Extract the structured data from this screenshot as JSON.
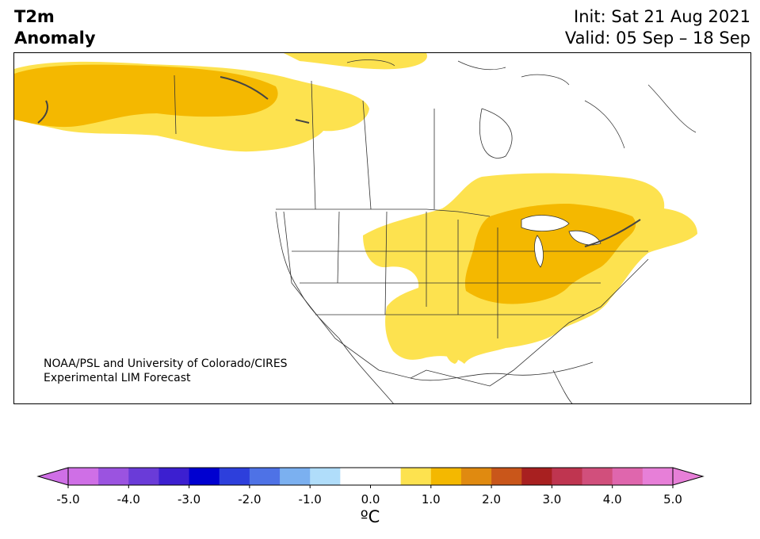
{
  "title": {
    "variable_line1": "T2m",
    "variable_line2": "Anomaly",
    "init": "Init: Sat 21 Aug 2021",
    "valid": "Valid: 05 Sep – 18 Sep"
  },
  "credit": {
    "line1": "NOAA/PSL and University of Colorado/CIRES",
    "line2": "Experimental LIM Forecast"
  },
  "colorbar": {
    "unit_label": "ºC",
    "tick_labels": [
      "-5.0",
      "-4.0",
      "-3.0",
      "-2.0",
      "-1.0",
      "0.0",
      "1.0",
      "2.0",
      "3.0",
      "4.0",
      "5.0"
    ],
    "colors": [
      "#cf6fe6",
      "#9b53e0",
      "#6a3bd8",
      "#3c1fd0",
      "#0000d0",
      "#2d3fdc",
      "#4e72e6",
      "#7bb0f0",
      "#b0ddfa",
      "#ffffff",
      "#ffffff",
      "#fde24f",
      "#f4b800",
      "#e08a10",
      "#c9561a",
      "#a82020",
      "#bf3550",
      "#d14f7c",
      "#df66ad",
      "#e77fd8"
    ],
    "extend_low_color": "#cf6fe6",
    "extend_high_color": "#e77fd8"
  },
  "legend_colors": {
    "anomaly_0_5_to_1_0": "#fde24f",
    "anomaly_1_0_to_1_5": "#f4b800"
  }
}
